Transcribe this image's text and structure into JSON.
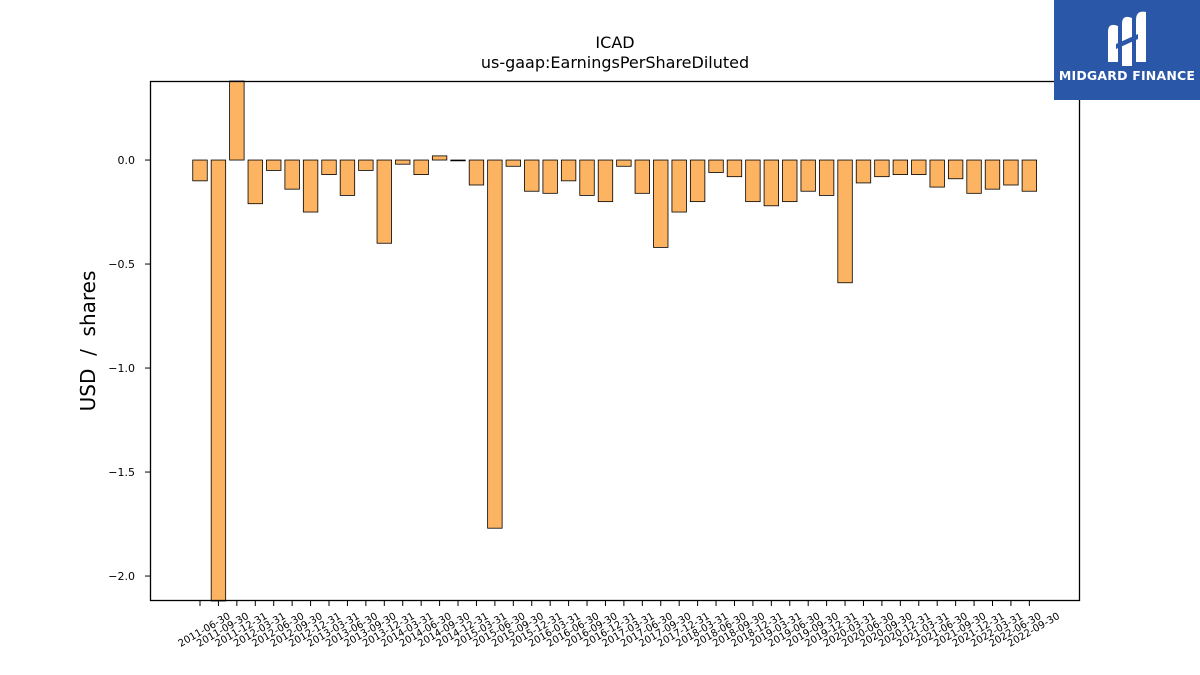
{
  "brand": {
    "name": "MIDGARD FINANCE",
    "logo_icon": "midgard-m-logo-icon",
    "background_color": "#2b57a8"
  },
  "chart_data": {
    "type": "bar",
    "title": "ICAD",
    "subtitle": "us-gaap:EarningsPerShareDiluted",
    "xlabel": "",
    "ylabel": "USD  /  shares",
    "ylim": [
      -2.12,
      0.38
    ],
    "yticks": [
      0.0,
      -0.5,
      -1.0,
      -1.5,
      -2.0
    ],
    "ytick_labels": [
      "0.0",
      "−0.5",
      "−1.0",
      "−1.5",
      "−2.0"
    ],
    "grid": false,
    "legend": "none",
    "bar_color": "#fdb462",
    "bar_edge_color": "#000000",
    "categories": [
      "2011-06-30",
      "2011-09-30",
      "2011-12-31",
      "2012-03-31",
      "2012-06-30",
      "2012-09-30",
      "2012-12-31",
      "2013-03-31",
      "2013-06-30",
      "2013-09-30",
      "2013-12-31",
      "2014-03-31",
      "2014-06-30",
      "2014-09-30",
      "2014-12-31",
      "2015-03-31",
      "2015-06-30",
      "2015-09-30",
      "2015-12-31",
      "2016-03-31",
      "2016-06-30",
      "2016-09-30",
      "2016-12-31",
      "2017-03-31",
      "2017-06-30",
      "2017-09-30",
      "2017-12-31",
      "2018-03-31",
      "2018-06-30",
      "2018-09-30",
      "2018-12-31",
      "2019-03-31",
      "2019-06-30",
      "2019-09-30",
      "2019-12-31",
      "2020-03-31",
      "2020-06-30",
      "2020-09-30",
      "2020-12-31",
      "2021-03-31",
      "2021-06-30",
      "2021-09-30",
      "2021-12-31",
      "2022-03-31",
      "2022-06-30",
      "2022-09-30"
    ],
    "values": [
      -0.1,
      -2.2,
      0.4,
      -0.21,
      -0.05,
      -0.14,
      -0.25,
      -0.07,
      -0.17,
      -0.05,
      -0.4,
      -0.02,
      -0.07,
      0.02,
      0.0,
      -0.12,
      -1.77,
      -0.03,
      -0.15,
      -0.16,
      -0.1,
      -0.17,
      -0.2,
      -0.03,
      -0.16,
      -0.42,
      -0.25,
      -0.2,
      -0.06,
      -0.08,
      -0.2,
      -0.22,
      -0.2,
      -0.15,
      -0.17,
      -0.59,
      -0.11,
      -0.08,
      -0.07,
      -0.07,
      -0.13,
      -0.09,
      -0.16,
      -0.14,
      -0.12,
      -0.15
    ]
  }
}
